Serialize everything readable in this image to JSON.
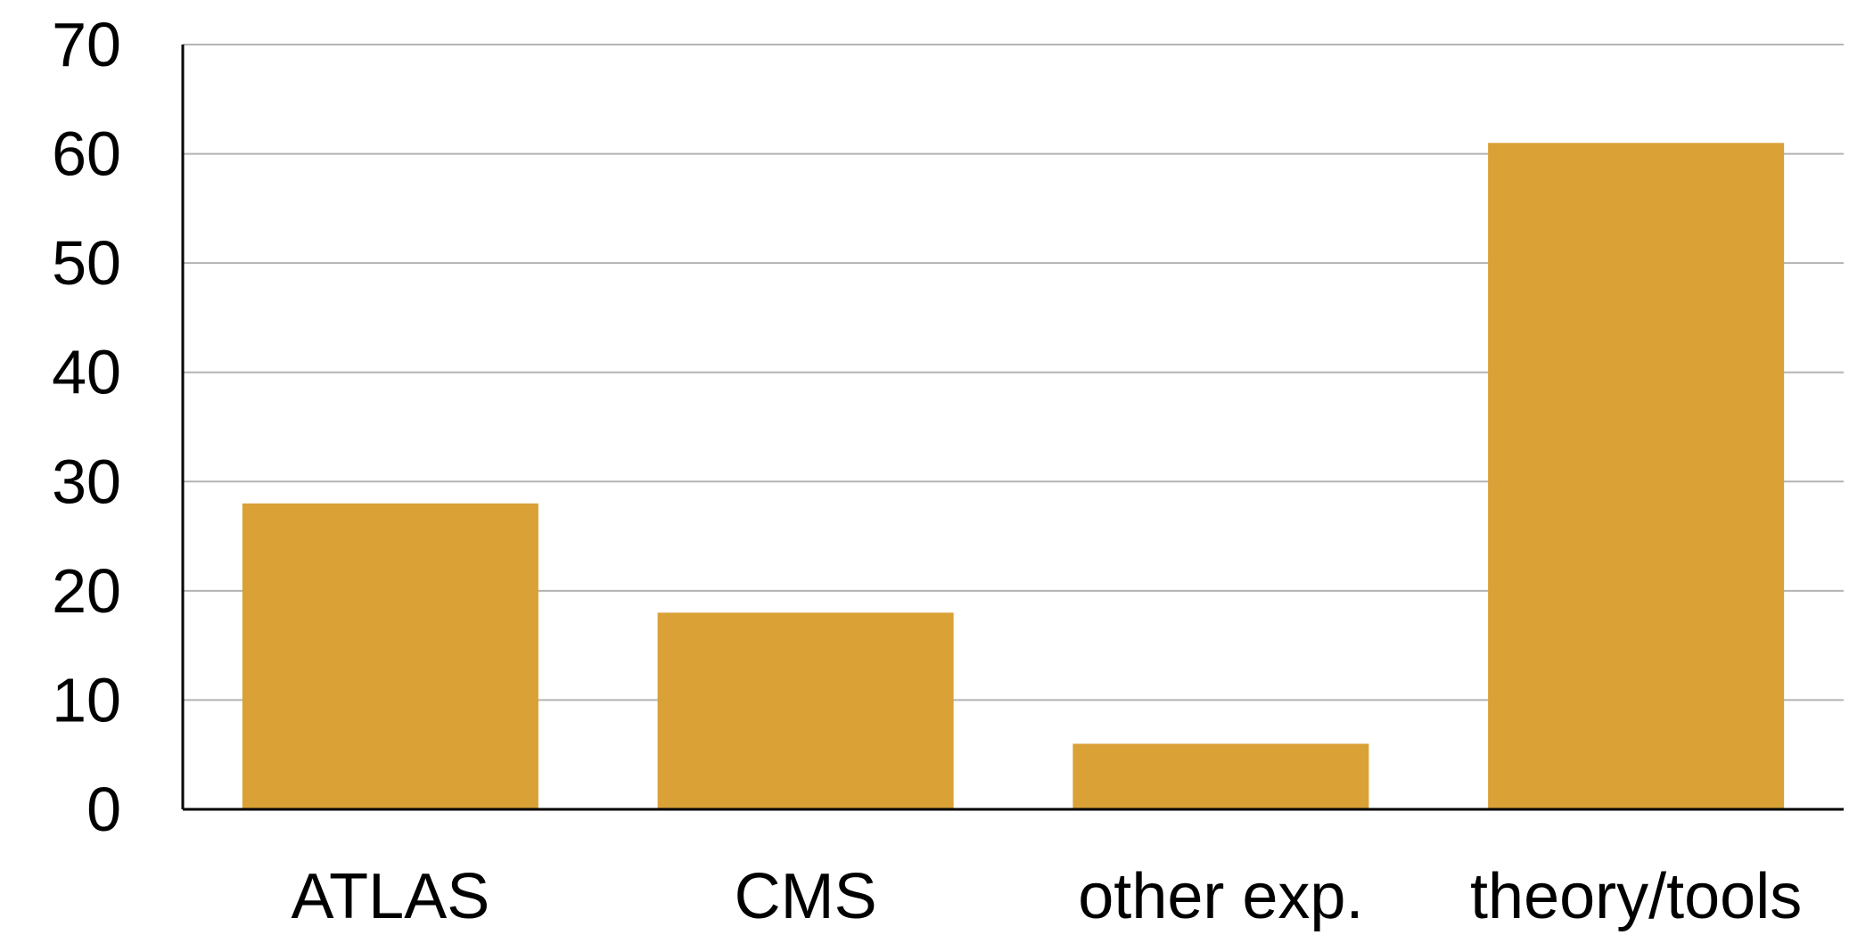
{
  "chart_data": {
    "type": "bar",
    "title": "",
    "xlabel": "",
    "ylabel": "",
    "categories": [
      "ATLAS",
      "CMS",
      "other exp.",
      "theory/tools"
    ],
    "values": [
      28,
      18,
      6,
      61
    ],
    "ylim": [
      0,
      70
    ],
    "yticks": [
      0,
      10,
      20,
      30,
      40,
      50,
      60,
      70
    ],
    "grid": true,
    "legend": "none",
    "colors": {
      "bar": "#d9a136",
      "grid": "#b3b3b3",
      "axis": "#000000"
    }
  }
}
